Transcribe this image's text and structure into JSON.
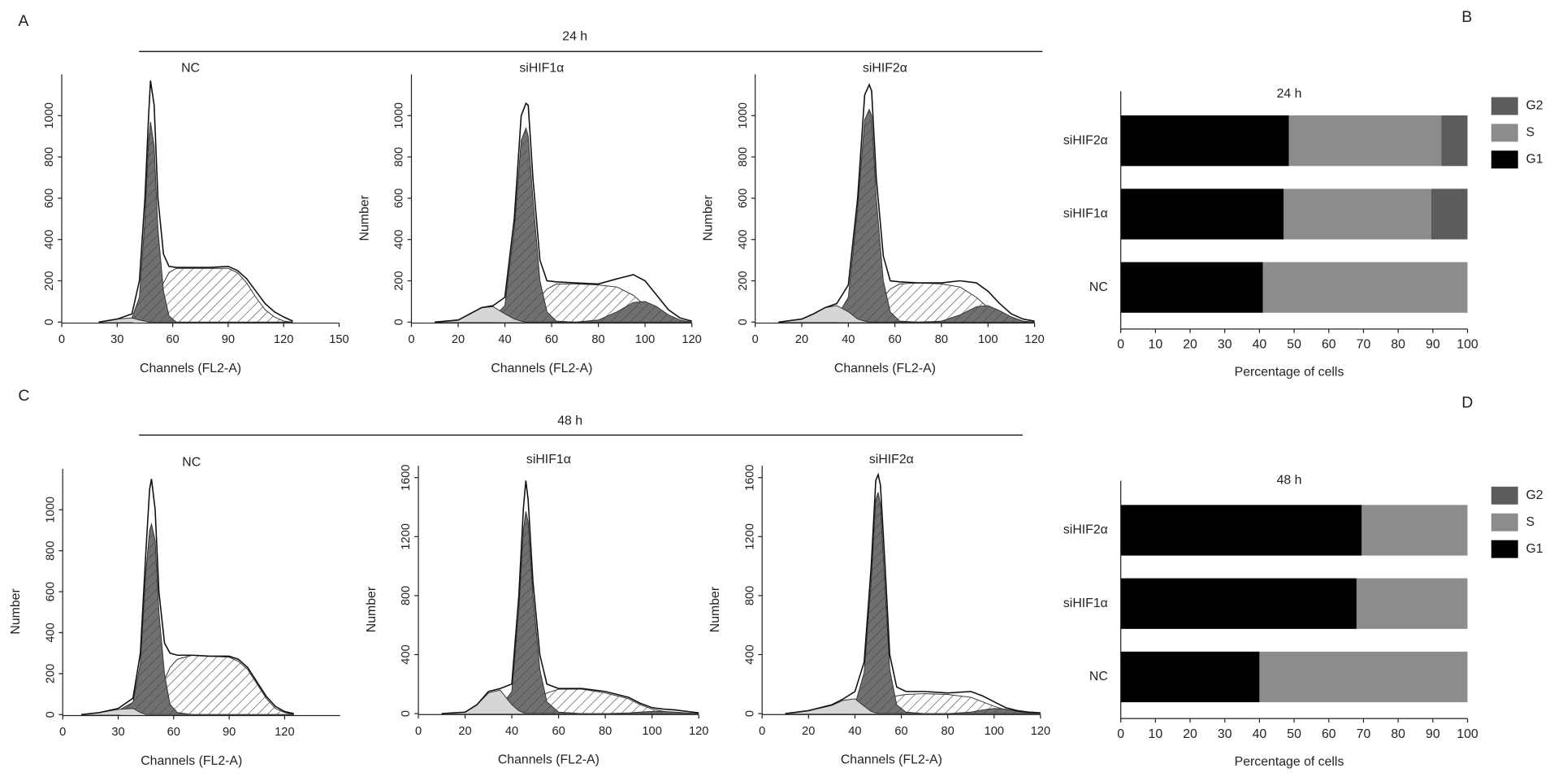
{
  "figure": {
    "panel_labels": [
      "A",
      "B",
      "C",
      "D"
    ],
    "time_headers": [
      "24 h",
      "48 h"
    ]
  },
  "chart_data": [
    {
      "type": "flow",
      "title": "NC",
      "xlabel": "Channels (FL2-A)",
      "xlim": [
        0,
        150
      ],
      "xticks": [
        0,
        30,
        60,
        90,
        120,
        150
      ],
      "ylim": [
        0,
        1200
      ],
      "yticks": [
        0,
        200,
        400,
        600,
        800,
        1000
      ],
      "x": [
        20,
        30,
        38,
        42,
        45,
        47,
        48,
        50,
        52,
        55,
        58,
        62,
        70,
        80,
        90,
        95,
        100,
        105,
        110,
        115,
        120,
        125
      ],
      "series": [
        {
          "color": "#ffffff",
          "hatch": true,
          "values": [
            0,
            0,
            0,
            5,
            20,
            40,
            60,
            90,
            130,
            190,
            240,
            260,
            260,
            260,
            260,
            240,
            190,
            120,
            60,
            25,
            5,
            0
          ]
        },
        {
          "color": "#707070",
          "hatch": true,
          "values": [
            0,
            5,
            20,
            120,
            500,
            880,
            970,
            850,
            450,
            150,
            30,
            0,
            0,
            0,
            0,
            0,
            0,
            0,
            0,
            0,
            0,
            0
          ]
        },
        {
          "color": "#d6d6d6",
          "values": [
            0,
            15,
            20,
            10,
            5,
            0,
            0,
            0,
            0,
            0,
            0,
            0,
            0,
            0,
            0,
            0,
            0,
            0,
            0,
            0,
            0,
            0
          ]
        },
        {
          "color": "#111111",
          "fill": false,
          "values": [
            0,
            15,
            40,
            200,
            600,
            1000,
            1170,
            1050,
            600,
            330,
            270,
            265,
            265,
            265,
            270,
            250,
            210,
            150,
            90,
            50,
            25,
            5
          ]
        }
      ]
    },
    {
      "type": "flow",
      "title": "siHIF1α",
      "xlabel": "Channels (FL2-A)",
      "ylabel": "Number",
      "xlim": [
        0,
        120
      ],
      "xticks": [
        0,
        20,
        40,
        60,
        80,
        100,
        120
      ],
      "ylim": [
        0,
        1200
      ],
      "yticks": [
        0,
        200,
        400,
        600,
        800,
        1000
      ],
      "x": [
        10,
        20,
        25,
        30,
        35,
        40,
        44,
        47,
        49,
        50,
        52,
        55,
        58,
        62,
        70,
        80,
        88,
        95,
        100,
        105,
        110,
        115,
        120
      ],
      "series": [
        {
          "color": "#ffffff",
          "hatch": true,
          "values": [
            0,
            0,
            0,
            0,
            0,
            5,
            15,
            30,
            50,
            60,
            80,
            120,
            160,
            185,
            185,
            180,
            170,
            130,
            80,
            40,
            10,
            0,
            0
          ]
        },
        {
          "color": "#707070",
          "hatch": true,
          "values": [
            0,
            0,
            0,
            5,
            20,
            80,
            450,
            880,
            940,
            900,
            600,
            200,
            50,
            5,
            0,
            0,
            0,
            0,
            0,
            0,
            0,
            0,
            0
          ]
        },
        {
          "color": "#707070",
          "hatch": true,
          "values": [
            0,
            0,
            0,
            0,
            0,
            0,
            0,
            0,
            0,
            0,
            0,
            0,
            0,
            0,
            0,
            10,
            50,
            95,
            100,
            75,
            35,
            10,
            0
          ]
        },
        {
          "color": "#d6d6d6",
          "values": [
            0,
            10,
            40,
            70,
            75,
            40,
            15,
            5,
            0,
            0,
            0,
            0,
            0,
            0,
            0,
            0,
            0,
            0,
            0,
            0,
            0,
            0,
            0
          ]
        },
        {
          "color": "#111111",
          "fill": false,
          "values": [
            0,
            10,
            40,
            70,
            80,
            120,
            500,
            1000,
            1060,
            1050,
            700,
            300,
            200,
            195,
            190,
            185,
            210,
            230,
            200,
            130,
            60,
            20,
            5
          ]
        }
      ]
    },
    {
      "type": "flow",
      "title": "siHIF2α",
      "xlabel": "Channels (FL2-A)",
      "ylabel": "Number",
      "xlim": [
        0,
        120
      ],
      "xticks": [
        0,
        20,
        40,
        60,
        80,
        100,
        120
      ],
      "ylim": [
        0,
        1200
      ],
      "yticks": [
        0,
        200,
        400,
        600,
        800,
        1000
      ],
      "x": [
        10,
        20,
        25,
        30,
        35,
        40,
        44,
        47,
        49,
        50,
        52,
        55,
        58,
        62,
        70,
        80,
        88,
        95,
        100,
        105,
        110,
        115,
        120
      ],
      "series": [
        {
          "color": "#ffffff",
          "hatch": true,
          "values": [
            0,
            0,
            0,
            0,
            0,
            5,
            15,
            30,
            50,
            60,
            80,
            120,
            160,
            185,
            190,
            185,
            170,
            120,
            70,
            30,
            10,
            0,
            0
          ]
        },
        {
          "color": "#707070",
          "hatch": true,
          "values": [
            0,
            0,
            0,
            5,
            25,
            120,
            550,
            980,
            1030,
            1000,
            600,
            200,
            50,
            5,
            0,
            0,
            0,
            0,
            0,
            0,
            0,
            0,
            0
          ]
        },
        {
          "color": "#707070",
          "hatch": true,
          "values": [
            0,
            0,
            0,
            0,
            0,
            0,
            0,
            0,
            0,
            0,
            0,
            0,
            0,
            0,
            0,
            5,
            35,
            75,
            80,
            55,
            25,
            5,
            0
          ]
        },
        {
          "color": "#d6d6d6",
          "values": [
            0,
            15,
            40,
            70,
            80,
            50,
            15,
            5,
            0,
            0,
            0,
            0,
            0,
            0,
            0,
            0,
            0,
            0,
            0,
            0,
            0,
            0,
            0
          ]
        },
        {
          "color": "#111111",
          "fill": false,
          "values": [
            0,
            15,
            40,
            70,
            90,
            180,
            600,
            1100,
            1150,
            1120,
            700,
            320,
            200,
            195,
            190,
            190,
            200,
            190,
            150,
            90,
            40,
            15,
            5
          ]
        }
      ]
    },
    {
      "type": "hbar",
      "title": "24 h",
      "xlabel": "Percentage of cells",
      "xlim": [
        0,
        100
      ],
      "xticks": [
        0,
        10,
        20,
        30,
        40,
        50,
        60,
        70,
        80,
        90,
        100
      ],
      "categories": [
        "NC",
        "siHIF1α",
        "siHIF2α"
      ],
      "series": [
        {
          "name": "G1",
          "color": "#000000",
          "values": [
            41,
            47,
            48.5
          ]
        },
        {
          "name": "S",
          "color": "#8c8c8c",
          "values": [
            59,
            42.5,
            44
          ]
        },
        {
          "name": "G2",
          "color": "#5c5c5c",
          "values": [
            0,
            10.5,
            7.5
          ]
        }
      ]
    },
    {
      "type": "flow",
      "title": "NC",
      "xlabel": "Channels (FL2-A)",
      "ylabel": "Number",
      "xlim": [
        0,
        150
      ],
      "xticks": [
        0,
        30,
        60,
        90,
        120
      ],
      "ylim": [
        0,
        1200
      ],
      "yticks": [
        0,
        200,
        400,
        600,
        800,
        1000
      ],
      "x": [
        10,
        20,
        30,
        38,
        42,
        45,
        47,
        48,
        50,
        52,
        55,
        58,
        62,
        70,
        80,
        90,
        95,
        100,
        105,
        110,
        115,
        120,
        125
      ],
      "series": [
        {
          "color": "#ffffff",
          "hatch": true,
          "values": [
            0,
            0,
            0,
            5,
            20,
            40,
            60,
            70,
            90,
            120,
            170,
            230,
            270,
            290,
            285,
            280,
            260,
            220,
            150,
            80,
            30,
            10,
            0
          ]
        },
        {
          "color": "#707070",
          "hatch": true,
          "values": [
            0,
            5,
            20,
            60,
            250,
            700,
            900,
            930,
            850,
            500,
            200,
            50,
            10,
            0,
            0,
            0,
            0,
            0,
            0,
            0,
            0,
            0,
            0
          ]
        },
        {
          "color": "#d6d6d6",
          "values": [
            0,
            10,
            25,
            30,
            10,
            0,
            0,
            0,
            0,
            0,
            0,
            0,
            0,
            0,
            0,
            0,
            0,
            0,
            0,
            0,
            0,
            0,
            0
          ]
        },
        {
          "color": "#111111",
          "fill": false,
          "values": [
            0,
            10,
            30,
            80,
            300,
            800,
            1100,
            1150,
            1000,
            600,
            350,
            300,
            290,
            290,
            285,
            285,
            270,
            230,
            160,
            90,
            40,
            15,
            5
          ]
        }
      ]
    },
    {
      "type": "flow",
      "title": "siHIF1α",
      "xlabel": "Channels (FL2-A)",
      "ylabel": "Number",
      "xlim": [
        0,
        120
      ],
      "xticks": [
        0,
        20,
        40,
        60,
        80,
        100,
        120
      ],
      "ylim": [
        0,
        1680
      ],
      "yticks": [
        0,
        400,
        800,
        1200,
        1600
      ],
      "x": [
        10,
        20,
        25,
        30,
        35,
        40,
        43,
        45,
        46,
        47,
        49,
        52,
        55,
        60,
        70,
        80,
        90,
        95,
        100,
        105,
        110,
        115,
        120
      ],
      "series": [
        {
          "color": "#ffffff",
          "hatch": true,
          "values": [
            0,
            0,
            0,
            0,
            5,
            10,
            20,
            40,
            50,
            60,
            80,
            110,
            140,
            165,
            165,
            140,
            100,
            60,
            30,
            15,
            5,
            0,
            0
          ]
        },
        {
          "color": "#707070",
          "hatch": true,
          "values": [
            0,
            0,
            0,
            10,
            40,
            150,
            700,
            1250,
            1370,
            1300,
            800,
            300,
            80,
            10,
            0,
            0,
            0,
            0,
            0,
            0,
            0,
            0,
            0
          ]
        },
        {
          "color": "#707070",
          "hatch": true,
          "values": [
            0,
            0,
            0,
            0,
            0,
            0,
            0,
            0,
            0,
            0,
            0,
            0,
            0,
            0,
            0,
            0,
            5,
            10,
            15,
            15,
            10,
            5,
            0
          ]
        },
        {
          "color": "#d6d6d6",
          "values": [
            0,
            10,
            60,
            140,
            160,
            60,
            20,
            5,
            0,
            0,
            0,
            0,
            0,
            0,
            0,
            0,
            0,
            0,
            0,
            0,
            0,
            0,
            0
          ]
        },
        {
          "color": "#111111",
          "fill": false,
          "values": [
            0,
            10,
            60,
            150,
            170,
            200,
            800,
            1400,
            1580,
            1450,
            900,
            400,
            200,
            170,
            170,
            150,
            110,
            70,
            40,
            30,
            25,
            15,
            5
          ]
        }
      ]
    },
    {
      "type": "flow",
      "title": "siHIF2α",
      "xlabel": "Channels (FL2-A)",
      "ylabel": "Number",
      "xlim": [
        0,
        120
      ],
      "xticks": [
        0,
        20,
        40,
        60,
        80,
        100,
        120
      ],
      "ylim": [
        0,
        1680
      ],
      "yticks": [
        0,
        400,
        800,
        1200,
        1600
      ],
      "x": [
        10,
        20,
        30,
        35,
        40,
        44,
        47,
        49,
        50,
        51,
        53,
        55,
        58,
        62,
        70,
        80,
        90,
        95,
        100,
        105,
        110,
        115,
        120
      ],
      "series": [
        {
          "color": "#ffffff",
          "hatch": true,
          "values": [
            0,
            0,
            0,
            0,
            5,
            10,
            30,
            50,
            60,
            70,
            80,
            100,
            120,
            130,
            135,
            130,
            110,
            80,
            50,
            25,
            10,
            0,
            0
          ]
        },
        {
          "color": "#707070",
          "hatch": true,
          "values": [
            0,
            0,
            5,
            20,
            60,
            280,
            900,
            1450,
            1500,
            1420,
            850,
            300,
            60,
            10,
            0,
            0,
            0,
            0,
            0,
            0,
            0,
            0,
            0
          ]
        },
        {
          "color": "#707070",
          "hatch": true,
          "values": [
            0,
            0,
            0,
            0,
            0,
            0,
            0,
            0,
            0,
            0,
            0,
            0,
            0,
            0,
            0,
            0,
            10,
            25,
            35,
            30,
            15,
            5,
            0
          ]
        },
        {
          "color": "#d6d6d6",
          "values": [
            0,
            20,
            55,
            90,
            100,
            50,
            15,
            5,
            0,
            0,
            0,
            0,
            0,
            0,
            0,
            0,
            0,
            0,
            0,
            0,
            0,
            0,
            0
          ]
        },
        {
          "color": "#111111",
          "fill": false,
          "values": [
            0,
            20,
            60,
            100,
            150,
            350,
            1000,
            1580,
            1620,
            1550,
            1000,
            400,
            180,
            150,
            150,
            140,
            150,
            120,
            80,
            40,
            20,
            10,
            5
          ]
        }
      ]
    },
    {
      "type": "hbar",
      "title": "48 h",
      "xlabel": "Percentage of cells",
      "xlim": [
        0,
        100
      ],
      "xticks": [
        0,
        10,
        20,
        30,
        40,
        50,
        60,
        70,
        80,
        90,
        100
      ],
      "categories": [
        "NC",
        "siHIF1α",
        "siHIF2α"
      ],
      "series": [
        {
          "name": "G1",
          "color": "#000000",
          "values": [
            40,
            68,
            69.5
          ]
        },
        {
          "name": "S",
          "color": "#8c8c8c",
          "values": [
            60,
            32,
            30.5
          ]
        },
        {
          "name": "G2",
          "color": "#5c5c5c",
          "values": [
            0,
            0,
            0
          ]
        }
      ]
    }
  ]
}
